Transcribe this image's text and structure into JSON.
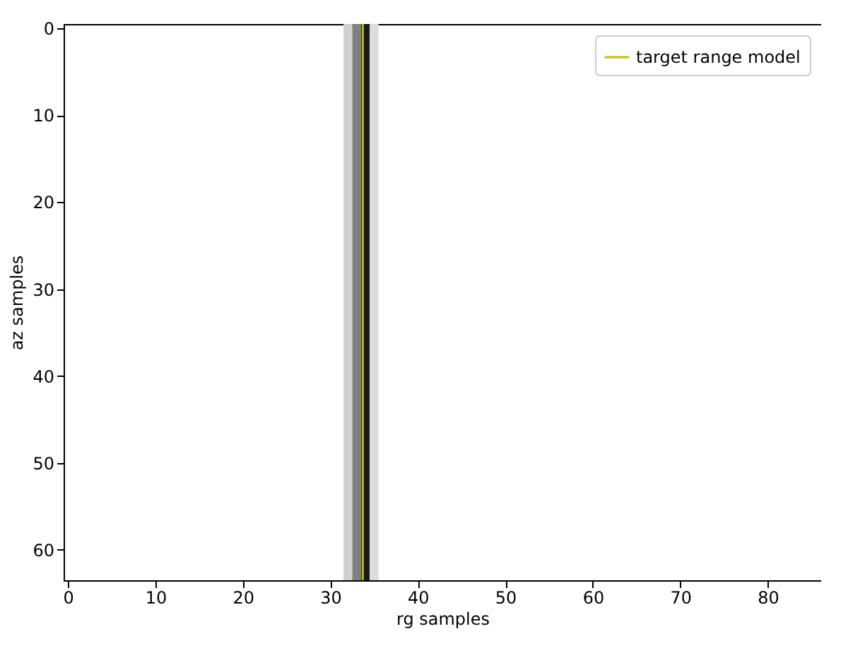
{
  "chart_data": {
    "type": "line",
    "xlabel": "rg samples",
    "ylabel": "az samples",
    "xlim": [
      -0.5,
      86.1
    ],
    "xticks": [
      0,
      10,
      20,
      30,
      40,
      50,
      60,
      70,
      80
    ],
    "ylim": [
      63.5,
      -0.5
    ],
    "yticks": [
      0,
      10,
      20,
      30,
      40,
      50,
      60
    ],
    "series": [
      {
        "name": "target range model",
        "color": "#bfbf00",
        "x": [
          33.7,
          33.7
        ],
        "values": [
          -0.5,
          63.5
        ]
      }
    ],
    "bands": [
      {
        "axis": "x",
        "from": 31.5,
        "to": 32.5,
        "color": "#d0d0d0"
      },
      {
        "axis": "x",
        "from": 32.5,
        "to": 33.5,
        "color": "#808080"
      },
      {
        "axis": "x",
        "from": 33.5,
        "to": 34.5,
        "color": "#1a1a1a"
      },
      {
        "axis": "x",
        "from": 34.5,
        "to": 35.5,
        "color": "#dcdcdc"
      }
    ],
    "legend": "top right",
    "grid": false,
    "marker": "none",
    "line_style": "solid"
  }
}
